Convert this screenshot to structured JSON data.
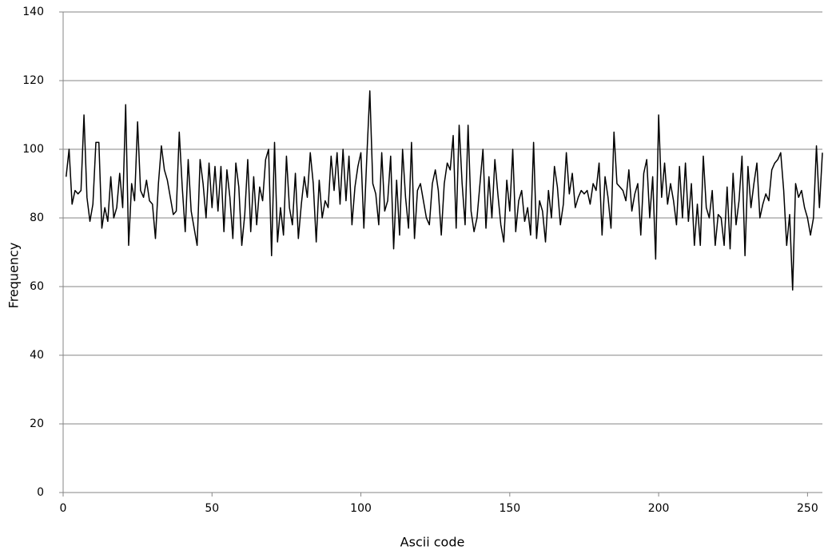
{
  "chart_data": {
    "type": "line",
    "x_label": "Ascii code",
    "y_label": "Frequency",
    "x": [
      1,
      2,
      3,
      4,
      5,
      6,
      7,
      8,
      9,
      10,
      11,
      12,
      13,
      14,
      15,
      16,
      17,
      18,
      19,
      20,
      21,
      22,
      23,
      24,
      25,
      26,
      27,
      28,
      29,
      30,
      31,
      32,
      33,
      34,
      35,
      36,
      37,
      38,
      39,
      40,
      41,
      42,
      43,
      44,
      45,
      46,
      47,
      48,
      49,
      50,
      51,
      52,
      53,
      54,
      55,
      56,
      57,
      58,
      59,
      60,
      61,
      62,
      63,
      64,
      65,
      66,
      67,
      68,
      69,
      70,
      71,
      72,
      73,
      74,
      75,
      76,
      77,
      78,
      79,
      80,
      81,
      82,
      83,
      84,
      85,
      86,
      87,
      88,
      89,
      90,
      91,
      92,
      93,
      94,
      95,
      96,
      97,
      98,
      99,
      100,
      101,
      102,
      103,
      104,
      105,
      106,
      107,
      108,
      109,
      110,
      111,
      112,
      113,
      114,
      115,
      116,
      117,
      118,
      119,
      120,
      121,
      122,
      123,
      124,
      125,
      126,
      127,
      128,
      129,
      130,
      131,
      132,
      133,
      134,
      135,
      136,
      137,
      138,
      139,
      140,
      141,
      142,
      143,
      144,
      145,
      146,
      147,
      148,
      149,
      150,
      151,
      152,
      153,
      154,
      155,
      156,
      157,
      158,
      159,
      160,
      161,
      162,
      163,
      164,
      165,
      166,
      167,
      168,
      169,
      170,
      171,
      172,
      173,
      174,
      175,
      176,
      177,
      178,
      179,
      180,
      181,
      182,
      183,
      184,
      185,
      186,
      187,
      188,
      189,
      190,
      191,
      192,
      193,
      194,
      195,
      196,
      197,
      198,
      199,
      200,
      201,
      202,
      203,
      204,
      205,
      206,
      207,
      208,
      209,
      210,
      211,
      212,
      213,
      214,
      215,
      216,
      217,
      218,
      219,
      220,
      221,
      222,
      223,
      224,
      225,
      226,
      227,
      228,
      229,
      230,
      231,
      232,
      233,
      234,
      235,
      236,
      237,
      238,
      239,
      240,
      241,
      242,
      243,
      244,
      245,
      246,
      247,
      248,
      249,
      250,
      251,
      252,
      253,
      254,
      255
    ],
    "series": [
      {
        "color": "#000000",
        "values": [
          92,
          100,
          84,
          88,
          87,
          88,
          110,
          86,
          79,
          84,
          102,
          102,
          77,
          83,
          79,
          92,
          80,
          83,
          93,
          83,
          113,
          72,
          90,
          85,
          108,
          88,
          86,
          91,
          85,
          84,
          74,
          90,
          101,
          94,
          91,
          86,
          81,
          82,
          105,
          89,
          76,
          97,
          82,
          77,
          72,
          97,
          90,
          80,
          96,
          83,
          95,
          82,
          95,
          76,
          94,
          86,
          74,
          96,
          89,
          72,
          81,
          97,
          76,
          92,
          78,
          89,
          85,
          97,
          100,
          69,
          102,
          73,
          83,
          75,
          98,
          83,
          78,
          93,
          74,
          84,
          92,
          86,
          99,
          90,
          73,
          91,
          80,
          85,
          83,
          98,
          88,
          99,
          84,
          100,
          85,
          98,
          78,
          89,
          95,
          99,
          77,
          98,
          117,
          90,
          87,
          78,
          99,
          82,
          85,
          98,
          71,
          91,
          75,
          100,
          86,
          77,
          102,
          74,
          88,
          90,
          85,
          80,
          78,
          90,
          94,
          88,
          75,
          90,
          96,
          94,
          104,
          77,
          107,
          90,
          78,
          107,
          82,
          76,
          80,
          90,
          100,
          77,
          92,
          80,
          97,
          87,
          78,
          73,
          91,
          82,
          100,
          76,
          85,
          88,
          79,
          83,
          75,
          102,
          74,
          85,
          82,
          73,
          88,
          80,
          95,
          89,
          78,
          84,
          99,
          87,
          93,
          83,
          86,
          88,
          87,
          88,
          84,
          90,
          88,
          96,
          75,
          92,
          86,
          77,
          105,
          90,
          89,
          88,
          85,
          94,
          82,
          87,
          90,
          75,
          93,
          97,
          80,
          92,
          68,
          110,
          86,
          96,
          84,
          90,
          85,
          78,
          95,
          80,
          96,
          79,
          90,
          72,
          84,
          72,
          98,
          83,
          80,
          88,
          72,
          81,
          80,
          72,
          89,
          71,
          93,
          78,
          85,
          98,
          69,
          95,
          83,
          90,
          96,
          80,
          84,
          87,
          85,
          94,
          96,
          97,
          99,
          88,
          72,
          81,
          59,
          90,
          86,
          88,
          83,
          80,
          75,
          80,
          101,
          83,
          99
        ]
      }
    ],
    "xlim": [
      0,
      255
    ],
    "xticks": [
      0,
      50,
      100,
      150,
      200,
      250
    ],
    "ylim": [
      0,
      140
    ],
    "yticks": [
      0,
      20,
      40,
      60,
      80,
      100,
      120,
      140
    ],
    "grid": true
  }
}
